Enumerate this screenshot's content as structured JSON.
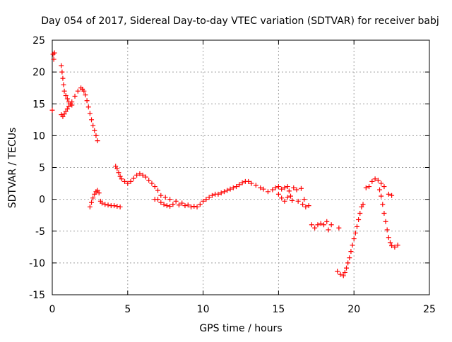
{
  "chart_data": {
    "type": "scatter",
    "title": "Day 054 of 2017, Sidereal Day-to-day VTEC variation (SDTVAR) for receiver babj",
    "xlabel": "GPS time / hours",
    "ylabel": "SDTVAR / TECUs",
    "xlim": [
      0,
      25
    ],
    "ylim": [
      -15,
      25
    ],
    "xticks": [
      "0",
      "5",
      "10",
      "15",
      "20",
      "25"
    ],
    "yticks": [
      "25",
      "20",
      "15",
      "10",
      "5",
      "0",
      "-5",
      "-10",
      "-15"
    ],
    "grid": true,
    "marker": "+",
    "color": "#ff0000",
    "series": [
      {
        "name": "babj",
        "points": [
          [
            0.0,
            14.0
          ],
          [
            0.05,
            22.8
          ],
          [
            0.1,
            22.0
          ],
          [
            0.15,
            23.0
          ],
          [
            0.6,
            21.0
          ],
          [
            0.65,
            20.0
          ],
          [
            0.7,
            19.0
          ],
          [
            0.75,
            18.0
          ],
          [
            0.8,
            17.0
          ],
          [
            0.9,
            16.3
          ],
          [
            1.0,
            15.8
          ],
          [
            1.1,
            15.3
          ],
          [
            1.2,
            15.0
          ],
          [
            1.3,
            14.8
          ],
          [
            0.6,
            13.3
          ],
          [
            0.7,
            13.0
          ],
          [
            0.8,
            13.4
          ],
          [
            0.9,
            13.8
          ],
          [
            1.0,
            14.2
          ],
          [
            1.1,
            14.6
          ],
          [
            1.3,
            15.3
          ],
          [
            1.5,
            16.2
          ],
          [
            1.7,
            17.0
          ],
          [
            1.9,
            17.5
          ],
          [
            2.0,
            17.3
          ],
          [
            2.1,
            17.0
          ],
          [
            2.2,
            16.4
          ],
          [
            2.3,
            15.5
          ],
          [
            2.4,
            14.5
          ],
          [
            2.5,
            13.5
          ],
          [
            2.6,
            12.5
          ],
          [
            2.7,
            11.6
          ],
          [
            2.8,
            10.8
          ],
          [
            2.9,
            10.0
          ],
          [
            3.0,
            9.2
          ],
          [
            2.5,
            -1.2
          ],
          [
            2.6,
            -0.5
          ],
          [
            2.7,
            0.2
          ],
          [
            2.8,
            0.8
          ],
          [
            2.9,
            1.2
          ],
          [
            3.0,
            1.4
          ],
          [
            3.1,
            1.0
          ],
          [
            3.2,
            -0.3
          ],
          [
            3.3,
            -0.6
          ],
          [
            3.5,
            -0.8
          ],
          [
            3.7,
            -0.9
          ],
          [
            3.9,
            -1.0
          ],
          [
            4.1,
            -1.0
          ],
          [
            4.3,
            -1.1
          ],
          [
            4.5,
            -1.2
          ],
          [
            4.2,
            5.2
          ],
          [
            4.3,
            4.8
          ],
          [
            4.4,
            4.2
          ],
          [
            4.5,
            3.6
          ],
          [
            4.6,
            3.2
          ],
          [
            4.8,
            2.8
          ],
          [
            5.0,
            2.5
          ],
          [
            5.2,
            2.8
          ],
          [
            5.4,
            3.3
          ],
          [
            5.6,
            3.8
          ],
          [
            5.8,
            4.0
          ],
          [
            6.0,
            3.8
          ],
          [
            6.2,
            3.5
          ],
          [
            6.4,
            3.0
          ],
          [
            6.6,
            2.5
          ],
          [
            6.8,
            2.0
          ],
          [
            7.0,
            1.4
          ],
          [
            6.8,
            0.0
          ],
          [
            7.0,
            0.0
          ],
          [
            7.2,
            -0.5
          ],
          [
            7.4,
            -0.8
          ],
          [
            7.6,
            -1.0
          ],
          [
            7.8,
            -1.1
          ],
          [
            7.2,
            0.6
          ],
          [
            7.5,
            0.3
          ],
          [
            7.8,
            0.0
          ],
          [
            8.2,
            -0.3
          ],
          [
            8.6,
            -0.6
          ],
          [
            9.0,
            -0.9
          ],
          [
            9.4,
            -1.1
          ],
          [
            8.0,
            -0.8
          ],
          [
            8.4,
            -0.9
          ],
          [
            8.8,
            -1.0
          ],
          [
            9.2,
            -1.2
          ],
          [
            9.6,
            -1.2
          ],
          [
            9.8,
            -0.8
          ],
          [
            10.0,
            -0.3
          ],
          [
            10.2,
            0.0
          ],
          [
            10.4,
            0.3
          ],
          [
            10.6,
            0.6
          ],
          [
            10.8,
            0.8
          ],
          [
            11.0,
            0.8
          ],
          [
            11.2,
            1.0
          ],
          [
            11.4,
            1.2
          ],
          [
            11.6,
            1.4
          ],
          [
            11.8,
            1.6
          ],
          [
            12.0,
            1.8
          ],
          [
            12.2,
            2.0
          ],
          [
            12.4,
            2.3
          ],
          [
            12.6,
            2.6
          ],
          [
            12.8,
            2.8
          ],
          [
            13.0,
            2.8
          ],
          [
            13.2,
            2.5
          ],
          [
            13.5,
            2.2
          ],
          [
            13.8,
            1.8
          ],
          [
            14.0,
            1.6
          ],
          [
            14.3,
            1.2
          ],
          [
            14.6,
            1.5
          ],
          [
            14.8,
            1.8
          ],
          [
            15.0,
            2.0
          ],
          [
            15.2,
            1.6
          ],
          [
            15.4,
            1.8
          ],
          [
            15.6,
            2.0
          ],
          [
            15.7,
            1.3
          ],
          [
            15.0,
            0.8
          ],
          [
            15.2,
            0.2
          ],
          [
            15.4,
            -0.3
          ],
          [
            15.6,
            0.3
          ],
          [
            15.8,
            0.5
          ],
          [
            15.9,
            -0.2
          ],
          [
            16.0,
            1.8
          ],
          [
            16.2,
            1.5
          ],
          [
            16.3,
            -0.3
          ],
          [
            16.5,
            1.7
          ],
          [
            16.6,
            -0.8
          ],
          [
            16.8,
            -1.2
          ],
          [
            17.0,
            -1.0
          ],
          [
            16.7,
            0.0
          ],
          [
            17.2,
            -4.0
          ],
          [
            17.4,
            -4.5
          ],
          [
            17.6,
            -4.0
          ],
          [
            17.8,
            -3.8
          ],
          [
            18.0,
            -4.0
          ],
          [
            18.2,
            -3.5
          ],
          [
            18.3,
            -4.8
          ],
          [
            18.5,
            -4.0
          ],
          [
            19.0,
            -4.5
          ],
          [
            18.9,
            -11.3
          ],
          [
            19.1,
            -11.8
          ],
          [
            19.3,
            -12.0
          ],
          [
            19.4,
            -11.5
          ],
          [
            19.5,
            -10.8
          ],
          [
            19.6,
            -10.0
          ],
          [
            19.7,
            -9.2
          ],
          [
            19.8,
            -8.2
          ],
          [
            19.9,
            -7.2
          ],
          [
            20.0,
            -6.2
          ],
          [
            20.1,
            -5.3
          ],
          [
            20.2,
            -4.3
          ],
          [
            20.3,
            -3.2
          ],
          [
            20.4,
            -2.2
          ],
          [
            20.5,
            -1.2
          ],
          [
            20.6,
            -0.8
          ],
          [
            20.8,
            1.8
          ],
          [
            21.0,
            2.0
          ],
          [
            21.2,
            2.8
          ],
          [
            21.4,
            3.2
          ],
          [
            21.6,
            3.0
          ],
          [
            21.8,
            2.5
          ],
          [
            22.0,
            2.0
          ],
          [
            21.7,
            1.5
          ],
          [
            21.8,
            0.5
          ],
          [
            21.9,
            -0.8
          ],
          [
            22.0,
            -2.2
          ],
          [
            22.1,
            -3.5
          ],
          [
            22.2,
            -4.8
          ],
          [
            22.3,
            -6.0
          ],
          [
            22.4,
            -6.8
          ],
          [
            22.5,
            -7.3
          ],
          [
            22.7,
            -7.5
          ],
          [
            22.9,
            -7.2
          ],
          [
            22.3,
            0.8
          ],
          [
            22.5,
            0.6
          ]
        ]
      }
    ]
  }
}
